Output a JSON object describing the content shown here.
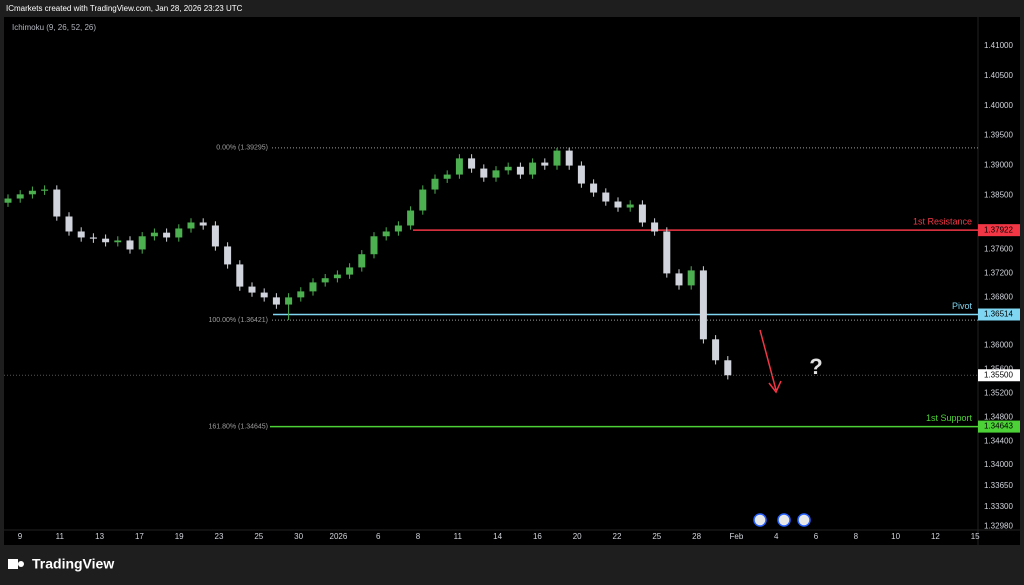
{
  "chart_data": {
    "type": "candlestick",
    "title": "ICmarkets created with TradingView.com, Jan 28, 2026 23:23 UTC",
    "indicator": "Ichimoku (9, 26, 52, 26)",
    "brand": "TradingView",
    "up_color": "#4caf50",
    "down_color": "#d1d4dc",
    "x_labels": [
      "9",
      "11",
      "13",
      "17",
      "19",
      "23",
      "25",
      "30",
      "2026",
      "6",
      "8",
      "11",
      "14",
      "16",
      "20",
      "22",
      "25",
      "28",
      "Feb",
      "4",
      "6",
      "8",
      "10",
      "12",
      "15"
    ],
    "open": [
      1.3838,
      1.3845,
      1.3852,
      1.3858,
      1.386,
      1.3815,
      1.379,
      1.378,
      1.3778,
      1.3772,
      1.3775,
      1.376,
      1.3782,
      1.3788,
      1.378,
      1.3795,
      1.3805,
      1.38,
      1.3765,
      1.3735,
      1.3698,
      1.3688,
      1.368,
      1.3668,
      1.368,
      1.369,
      1.3705,
      1.3712,
      1.3718,
      1.373,
      1.3752,
      1.3782,
      1.379,
      1.38,
      1.3825,
      1.386,
      1.3878,
      1.3885,
      1.3912,
      1.3895,
      1.388,
      1.3892,
      1.3898,
      1.3885,
      1.3905,
      1.39,
      1.3925,
      1.39,
      1.387,
      1.3855,
      1.384,
      1.383,
      1.3835,
      1.3805,
      1.379,
      1.372,
      1.37,
      1.3725,
      1.361,
      1.3575
    ],
    "high": [
      1.3852,
      1.3859,
      1.3865,
      1.3867,
      1.3867,
      1.3822,
      1.3797,
      1.3787,
      1.3785,
      1.3782,
      1.3782,
      1.3789,
      1.3795,
      1.3795,
      1.3802,
      1.3812,
      1.3812,
      1.3807,
      1.3772,
      1.3742,
      1.3705,
      1.3695,
      1.3687,
      1.3687,
      1.3697,
      1.3712,
      1.3719,
      1.3725,
      1.3737,
      1.3759,
      1.3789,
      1.3797,
      1.3807,
      1.3832,
      1.3867,
      1.3885,
      1.3892,
      1.3919,
      1.3919,
      1.3902,
      1.3899,
      1.3905,
      1.3905,
      1.3912,
      1.3912,
      1.39295,
      1.393,
      1.3907,
      1.3877,
      1.3862,
      1.3847,
      1.3842,
      1.3842,
      1.3812,
      1.3797,
      1.3727,
      1.3732,
      1.3732,
      1.3617,
      1.3582
    ],
    "low": [
      1.3831,
      1.3838,
      1.3845,
      1.3851,
      1.3808,
      1.3783,
      1.3773,
      1.3771,
      1.3765,
      1.3765,
      1.3753,
      1.3753,
      1.3775,
      1.3773,
      1.3773,
      1.3788,
      1.3793,
      1.3758,
      1.3728,
      1.3691,
      1.3681,
      1.3673,
      1.3661,
      1.36421,
      1.3673,
      1.3683,
      1.3698,
      1.3705,
      1.3711,
      1.3723,
      1.3745,
      1.3775,
      1.3783,
      1.3793,
      1.3818,
      1.3853,
      1.3871,
      1.3878,
      1.3888,
      1.3873,
      1.3873,
      1.3885,
      1.3878,
      1.3878,
      1.3893,
      1.3893,
      1.3893,
      1.3863,
      1.3848,
      1.3833,
      1.3823,
      1.3823,
      1.3798,
      1.3783,
      1.3713,
      1.3693,
      1.3693,
      1.3603,
      1.3568,
      1.3543
    ],
    "close": [
      1.3845,
      1.3852,
      1.3858,
      1.386,
      1.3815,
      1.379,
      1.378,
      1.3778,
      1.3772,
      1.3775,
      1.376,
      1.3782,
      1.3788,
      1.378,
      1.3795,
      1.3805,
      1.38,
      1.3765,
      1.3735,
      1.3698,
      1.3688,
      1.368,
      1.3668,
      1.368,
      1.369,
      1.3705,
      1.3712,
      1.3718,
      1.373,
      1.3752,
      1.3782,
      1.379,
      1.38,
      1.3825,
      1.386,
      1.3878,
      1.3885,
      1.3912,
      1.3895,
      1.388,
      1.3892,
      1.3898,
      1.3885,
      1.3905,
      1.39,
      1.3925,
      1.39,
      1.387,
      1.3855,
      1.384,
      1.383,
      1.3835,
      1.3805,
      1.379,
      1.372,
      1.37,
      1.3725,
      1.361,
      1.3575,
      1.355
    ],
    "ylim": [
      1.3275,
      1.4143
    ],
    "yticks": [
      {
        "value": 1.41,
        "label": "1.41000"
      },
      {
        "value": 1.405,
        "label": "1.40500"
      },
      {
        "value": 1.4,
        "label": "1.40000"
      },
      {
        "value": 1.395,
        "label": "1.39500"
      },
      {
        "value": 1.39,
        "label": "1.39000"
      },
      {
        "value": 1.385,
        "label": "1.38500"
      },
      {
        "value": 1.376,
        "label": "1.37600"
      },
      {
        "value": 1.372,
        "label": "1.37200"
      },
      {
        "value": 1.368,
        "label": "1.36800"
      },
      {
        "value": 1.36,
        "label": "1.36000"
      },
      {
        "value": 1.356,
        "label": "1.35600"
      },
      {
        "value": 1.352,
        "label": "1.35200"
      },
      {
        "value": 1.348,
        "label": "1.34800"
      },
      {
        "value": 1.344,
        "label": "1.34400"
      },
      {
        "value": 1.34,
        "label": "1.34000"
      },
      {
        "value": 1.3365,
        "label": "1.33650"
      },
      {
        "value": 1.333,
        "label": "1.33300"
      },
      {
        "value": 1.3298,
        "label": "1.32980"
      }
    ],
    "levels": [
      {
        "name": "1st Resistance",
        "value": 1.37922,
        "color": "#f23645"
      },
      {
        "name": "Pivot",
        "value": 1.36514,
        "color": "#7fd6f2"
      },
      {
        "name": "1st Support",
        "value": 1.34643,
        "color": "#4cd137"
      }
    ],
    "fib": [
      {
        "label": "0.00% (1.39295)",
        "value": 1.39295
      },
      {
        "label": "100.00% (1.36421)",
        "value": 1.36421
      },
      {
        "label": "161.80% (1.34645)",
        "value": 1.34645
      }
    ],
    "last_price": {
      "value": 1.355,
      "label": "1.35500"
    }
  }
}
